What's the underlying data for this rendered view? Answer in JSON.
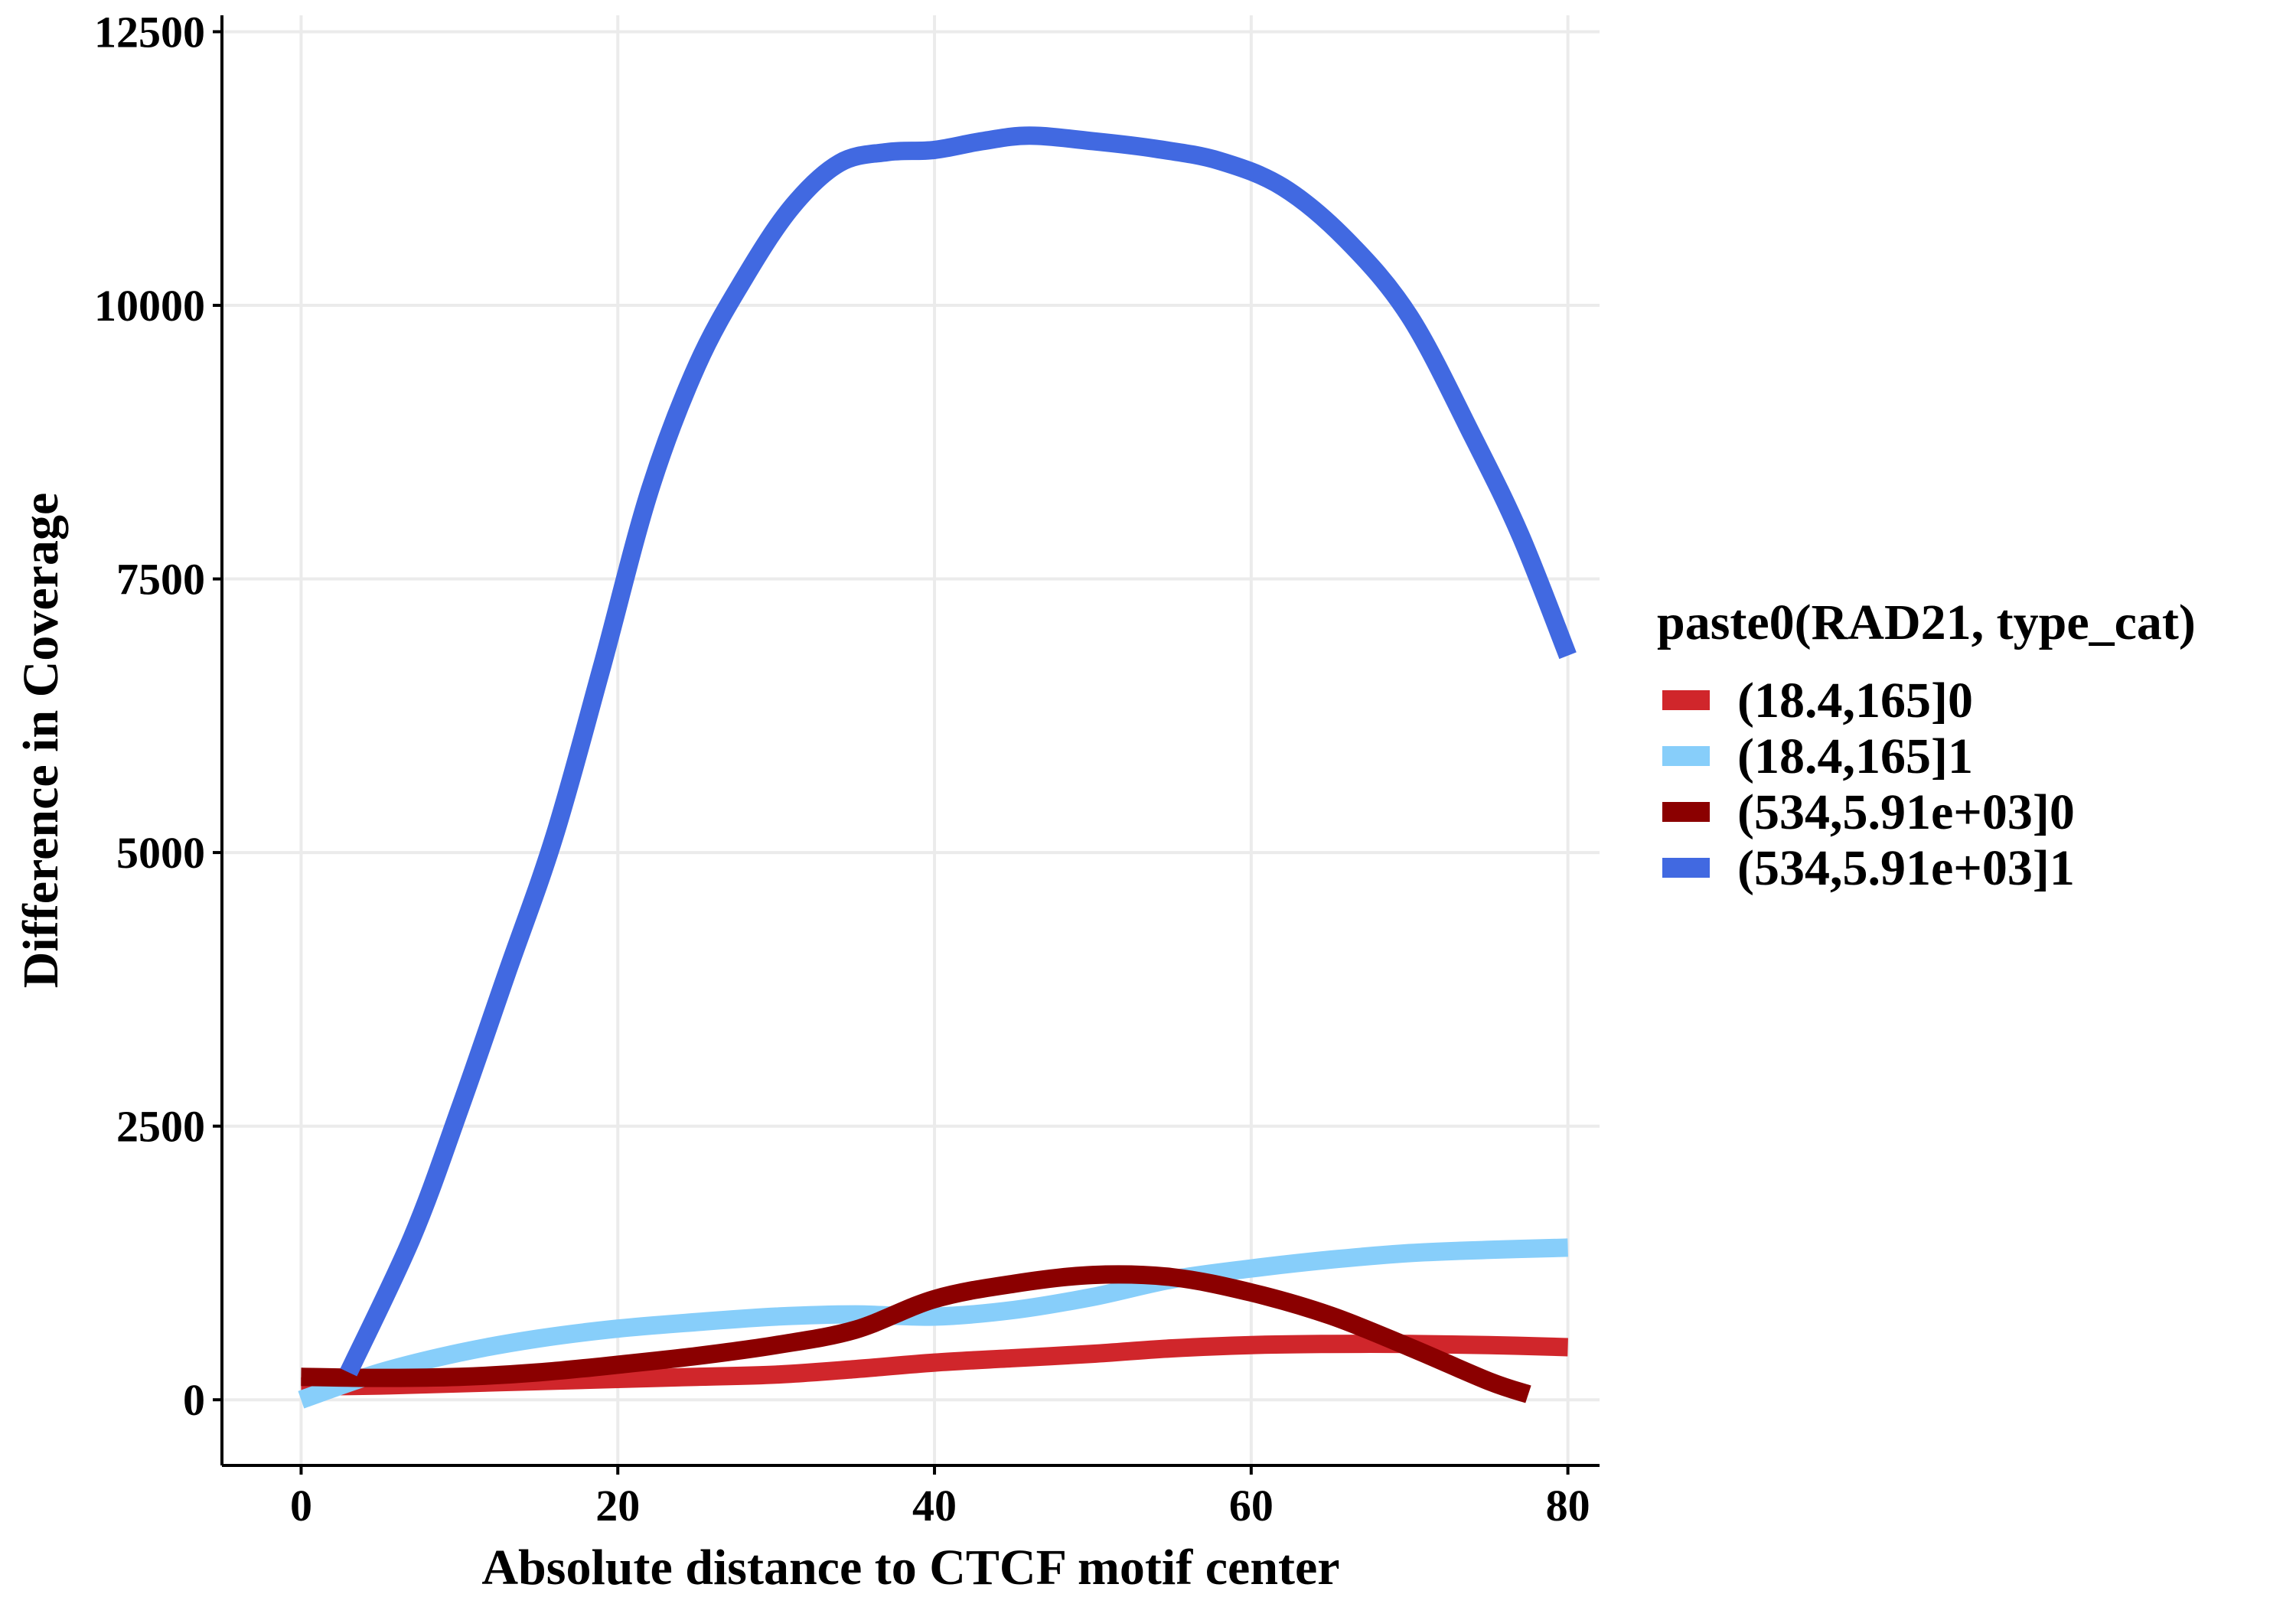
{
  "chart_data": {
    "type": "line",
    "title": "",
    "xlabel": "Absolute distance to CTCF motif center",
    "ylabel": "Difference in Coverage",
    "xlim": [
      -5,
      82
    ],
    "ylim": [
      -600,
      12650
    ],
    "x_ticks": [
      0,
      20,
      40,
      60,
      80
    ],
    "y_ticks": [
      0,
      2500,
      5000,
      7500,
      10000,
      12500
    ],
    "x_tick_labels": [
      "0",
      "20",
      "40",
      "60",
      "80"
    ],
    "y_tick_labels": [
      "0",
      "2500",
      "5000",
      "7500",
      "10000",
      "12500"
    ],
    "grid": true,
    "legend": {
      "title": "paste0(RAD21, type_cat)",
      "position": "right"
    },
    "series": [
      {
        "name": "(18.4,165]0",
        "color": "#d0262b",
        "x": [
          0,
          5,
          10,
          15,
          20,
          25,
          30,
          35,
          40,
          45,
          50,
          55,
          60,
          65,
          70,
          75,
          80
        ],
        "y": [
          120,
          130,
          150,
          170,
          190,
          210,
          230,
          280,
          340,
          380,
          420,
          470,
          500,
          510,
          510,
          500,
          480
        ]
      },
      {
        "name": "(18.4,165]1",
        "color": "#87cefa",
        "x": [
          0,
          5,
          10,
          15,
          20,
          25,
          30,
          35,
          40,
          45,
          50,
          55,
          60,
          65,
          70,
          75,
          80
        ],
        "y": [
          0,
          250,
          430,
          560,
          650,
          710,
          760,
          780,
          760,
          820,
          940,
          1100,
          1200,
          1280,
          1340,
          1370,
          1390
        ]
      },
      {
        "name": "(534,5.91e+03]0",
        "color": "#8b0000",
        "x": [
          0,
          5,
          10,
          15,
          20,
          25,
          30,
          35,
          40,
          45,
          50,
          55,
          60,
          65,
          70,
          75,
          77.5
        ],
        "y": [
          210,
          200,
          210,
          250,
          320,
          400,
          500,
          640,
          920,
          1060,
          1140,
          1120,
          980,
          770,
          480,
          170,
          50
        ]
      },
      {
        "name": "(534,5.91e+03]1",
        "color": "#4169e1",
        "x": [
          3,
          7,
          10,
          13,
          16,
          19,
          22,
          25,
          28,
          31,
          34,
          37,
          40,
          43,
          46,
          50,
          54,
          58,
          62,
          66,
          70,
          74,
          77,
          80
        ],
        "y": [
          250,
          1480,
          2650,
          3900,
          5150,
          6700,
          8300,
          9450,
          10250,
          10900,
          11300,
          11400,
          11420,
          11500,
          11550,
          11500,
          11430,
          11320,
          11080,
          10600,
          9900,
          8800,
          7900,
          6800
        ]
      }
    ]
  }
}
